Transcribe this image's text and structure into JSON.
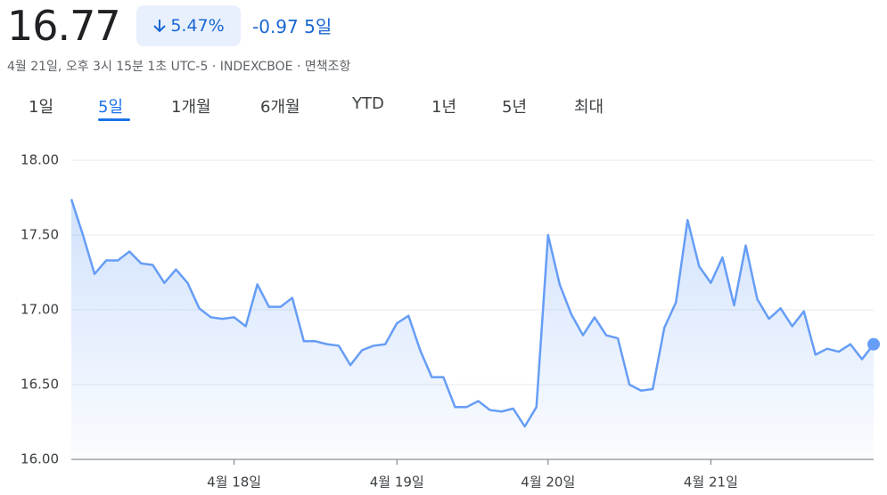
{
  "header": {
    "price": "16.77",
    "change_percent": "5.47%",
    "change": "-0.97",
    "period": "5일",
    "timestamp": "4월 21일, 오후 3시 15분 1초 UTC-5 · INDEXCBOE · 면책조항"
  },
  "tabs": [
    "1일",
    "5일",
    "1개월",
    "6개월",
    "YTD",
    "1년",
    "5년",
    "최대"
  ],
  "active_tab": 1,
  "chart_data": {
    "type": "line",
    "color": "#669df6",
    "grid": true,
    "categories": [
      null,
      null,
      null,
      null,
      null,
      null,
      null,
      null,
      null,
      null,
      null,
      null,
      null,
      null,
      "4월 18일",
      null,
      null,
      null,
      null,
      null,
      null,
      null,
      null,
      null,
      null,
      null,
      null,
      null,
      "4월 19일",
      null,
      null,
      null,
      null,
      null,
      null,
      null,
      null,
      null,
      null,
      null,
      null,
      "4월 20일",
      null,
      null,
      null,
      null,
      null,
      null,
      null,
      null,
      null,
      null,
      null,
      null,
      null,
      "4월 21일",
      null,
      null,
      null,
      null,
      null,
      null,
      null,
      null,
      null,
      null,
      null,
      null,
      null,
      null
    ],
    "values": [
      17.74,
      17.5,
      17.24,
      17.33,
      17.33,
      17.39,
      17.31,
      17.3,
      17.18,
      17.27,
      17.18,
      17.01,
      16.95,
      16.94,
      16.95,
      16.89,
      17.17,
      17.02,
      17.02,
      17.08,
      16.79,
      16.79,
      16.77,
      16.76,
      16.63,
      16.73,
      16.76,
      16.77,
      16.91,
      16.96,
      16.73,
      16.55,
      16.55,
      16.35,
      16.35,
      16.39,
      16.33,
      16.32,
      16.34,
      16.22,
      16.35,
      17.5,
      17.17,
      16.97,
      16.83,
      16.95,
      16.83,
      16.81,
      16.5,
      16.46,
      16.47,
      16.88,
      17.05,
      17.6,
      17.29,
      17.18,
      17.35,
      17.03,
      17.43,
      17.07,
      16.94,
      17.01,
      16.89,
      16.99,
      16.7,
      16.74,
      16.72,
      16.77,
      16.67,
      16.77
    ],
    "ylim": [
      16,
      18
    ],
    "yticks": [
      {
        "value": 16,
        "label": "16.00"
      },
      {
        "value": 16.5,
        "label": "16.50"
      },
      {
        "value": 17,
        "label": "17.00"
      },
      {
        "value": 17.5,
        "label": "17.50"
      },
      {
        "value": 18,
        "label": "18.00"
      }
    ]
  }
}
